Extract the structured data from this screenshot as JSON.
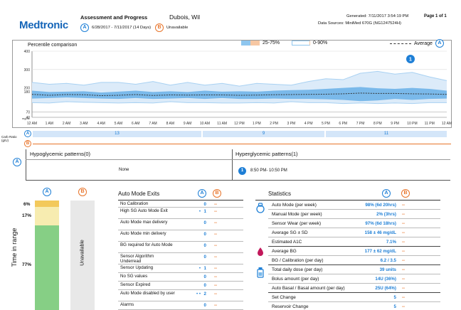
{
  "header": {
    "logo": "Medtronic",
    "report_title": "Assessment and Progress",
    "patient_name": "Dubois, Wil",
    "period_a_badge": "A",
    "period_a_range": "6/28/2017 - 7/11/2017 (14 Days)",
    "period_b_badge": "B",
    "period_b_status": "Unavailable",
    "generated": "Generated: 7/11/2017 3:54:19 PM",
    "data_sources": "Data Sources: MiniMed 670G (NG1247524H)",
    "page": "Page 1 of 1"
  },
  "chart": {
    "title": "Percentile comparison",
    "legend_25_75": "25-75%",
    "legend_0_90": "0-90%",
    "legend_average": "Average",
    "legend_badge": "A",
    "pattern_marker": "1",
    "y_ticks": [
      "400",
      "300",
      "200",
      "180",
      "70",
      "40"
    ],
    "y_unit": "mg/dL",
    "x_ticks": [
      "12 AM",
      "1 AM",
      "2 AM",
      "3 AM",
      "4 AM",
      "5 AM",
      "6 AM",
      "7 AM",
      "8 AM",
      "9 AM",
      "10 AM",
      "11 AM",
      "12 PM",
      "1 PM",
      "2 PM",
      "3 PM",
      "4 PM",
      "5 PM",
      "6 PM",
      "7 PM",
      "8 PM",
      "9 PM",
      "10 PM",
      "11 PM",
      "12 AM"
    ],
    "colors": {
      "band_inner": "#7ab9ea",
      "band_outer": "#a8d1f2",
      "average": "#333333",
      "target_line": "#999999"
    }
  },
  "chart_data": {
    "type": "area",
    "title": "Percentile comparison",
    "xlabel": "",
    "ylabel": "mg/dL",
    "x": [
      "12 AM",
      "1 AM",
      "2 AM",
      "3 AM",
      "4 AM",
      "5 AM",
      "6 AM",
      "7 AM",
      "8 AM",
      "9 AM",
      "10 AM",
      "11 AM",
      "12 PM",
      "1 PM",
      "2 PM",
      "3 PM",
      "4 PM",
      "5 PM",
      "6 PM",
      "7 PM",
      "8 PM",
      "9 PM",
      "10 PM",
      "11 PM",
      "12 AM"
    ],
    "ylim": [
      40,
      400
    ],
    "series": [
      {
        "name": "0-90%",
        "lower": [
          120,
          118,
          125,
          122,
          120,
          118,
          120,
          118,
          125,
          120,
          120,
          118,
          118,
          120,
          118,
          125,
          120,
          120,
          115,
          118,
          115,
          118,
          115,
          120,
          120
        ],
        "upper": [
          230,
          220,
          225,
          215,
          230,
          230,
          220,
          235,
          215,
          230,
          215,
          225,
          210,
          225,
          220,
          215,
          235,
          250,
          245,
          280,
          290,
          275,
          285,
          260,
          240
        ]
      },
      {
        "name": "25-75%",
        "lower": [
          142,
          145,
          148,
          145,
          142,
          140,
          145,
          140,
          142,
          145,
          140,
          145,
          140,
          140,
          142,
          140,
          140,
          138,
          135,
          128,
          132,
          140,
          135,
          140,
          142
        ],
        "upper": [
          185,
          178,
          180,
          182,
          175,
          180,
          185,
          178,
          182,
          178,
          185,
          180,
          182,
          180,
          185,
          188,
          190,
          195,
          200,
          205,
          198,
          195,
          200,
          195,
          185
        ]
      },
      {
        "name": "Average",
        "values": [
          165,
          160,
          164,
          163,
          158,
          160,
          164,
          159,
          162,
          161,
          162,
          162,
          160,
          161,
          163,
          164,
          165,
          166,
          168,
          172,
          170,
          170,
          168,
          167,
          165
        ]
      }
    ]
  },
  "carb": {
    "label": "Carb Ratio (g/U)",
    "badge_a": "A",
    "badge_b": "B",
    "values": [
      "13",
      "9",
      "11"
    ]
  },
  "patterns": {
    "badge": "A",
    "hypo_title": "Hypoglycemic patterns(0)",
    "hypo_value": "None",
    "hyper_title": "Hyperglycemic patterns(1)",
    "hyper_badge": "1",
    "hyper_value": "8:50 PM- 10:50 PM"
  },
  "time_in_range": {
    "badge_a": "A",
    "badge_b": "B",
    "ylabel": "Time in range",
    "pct_high": "6%",
    "pct_above": "17%",
    "pct_in": "77%",
    "fraction_high": 0.06,
    "fraction_above": 0.17,
    "fraction_in": 0.77,
    "period_b": "Unavailable",
    "colors": {
      "high": "#f3c95b",
      "above": "#f7ecb0",
      "in": "#86cf85",
      "b_bg": "#e8e8e8"
    }
  },
  "auto_mode_exits": {
    "title": "Auto Mode Exits",
    "badge_a": "A",
    "badge_b": "B",
    "rows": [
      {
        "label": "No Calibration",
        "dots": "",
        "a": "0",
        "b": "--"
      },
      {
        "label": "High SG Auto Mode Exit",
        "dots": "•",
        "a": "1",
        "b": "--"
      },
      {
        "label": "Auto Mode max delivery",
        "dots": "",
        "a": "0",
        "b": "--"
      },
      {
        "label": "Auto Mode min delivery",
        "dots": "",
        "a": "0",
        "b": "--"
      },
      {
        "label": "BG required for Auto Mode",
        "dots": "",
        "a": "0",
        "b": "--"
      },
      {
        "label": "Sensor Algorithm Underread",
        "dots": "",
        "a": "0",
        "b": "--"
      },
      {
        "label": "Sensor Updating",
        "dots": "•",
        "a": "1",
        "b": "--"
      },
      {
        "label": "No SG values",
        "dots": "",
        "a": "0",
        "b": "--"
      },
      {
        "label": "Sensor Expired",
        "dots": "",
        "a": "0",
        "b": "--"
      },
      {
        "label": "Auto Mode disabled by user",
        "dots": "• •",
        "a": "2",
        "b": "--"
      },
      {
        "label": "Alarms",
        "dots": "",
        "a": "0",
        "b": "--"
      }
    ]
  },
  "statistics": {
    "title": "Statistics",
    "badge_a": "A",
    "badge_b": "B",
    "rows": [
      {
        "label": "Auto Mode (per week)",
        "a": "98% (6d 20hrs)",
        "b": "--"
      },
      {
        "label": "Manual Mode (per week)",
        "a": "2% (3hrs)",
        "b": "--"
      },
      {
        "label": "Sensor Wear (per week)",
        "a": "97% (6d 18hrs)",
        "b": "--"
      },
      {
        "label": "Average SG ± SD",
        "a": "158 ± 46 mg/dL",
        "b": "--"
      },
      {
        "label": "Estimated A1C",
        "a": "7.1%",
        "b": "--"
      },
      {
        "label": "Average BG",
        "a": "177 ± 62 mg/dL",
        "b": "--"
      },
      {
        "label": "BG / Calibration (per day)",
        "a": "6.2 / 3.5",
        "b": "--"
      },
      {
        "label": "Total daily dose (per day)",
        "a": "39 units",
        "b": "--"
      },
      {
        "label": "Bolus amount (per day)",
        "a": "14U (36%)",
        "b": "--"
      },
      {
        "label": "Auto Basal / Basal amount (per day)",
        "a": "25U (64%)",
        "b": "--"
      },
      {
        "label": "Set Change",
        "a": "5",
        "b": "--"
      },
      {
        "label": "Reservoir Change",
        "a": "5",
        "b": "--"
      }
    ]
  }
}
